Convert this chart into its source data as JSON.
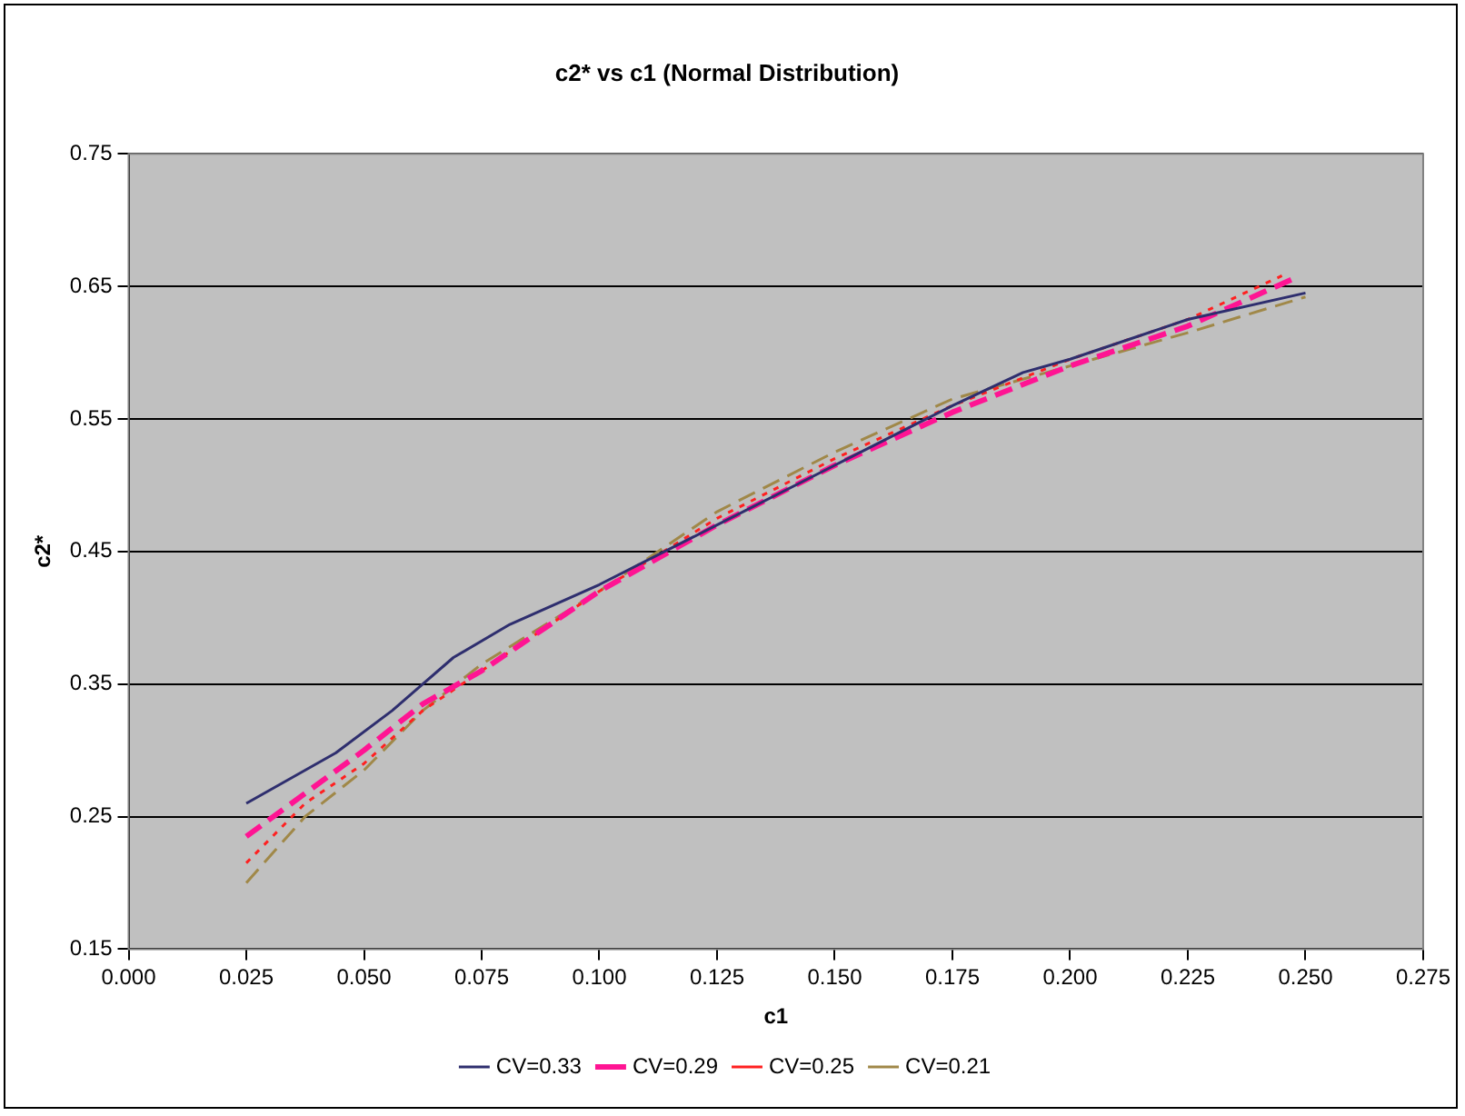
{
  "chart_data": {
    "type": "line",
    "title": "c2* vs c1 (Normal Distribution)",
    "xlabel": "c1",
    "ylabel": "c2*",
    "xlim": [
      0,
      0.275
    ],
    "xticks": [
      {
        "value": 0,
        "label": "0.000"
      },
      {
        "value": 0.025,
        "label": "0.025"
      },
      {
        "value": 0.05,
        "label": "0.050"
      },
      {
        "value": 0.075,
        "label": "0.075"
      },
      {
        "value": 0.1,
        "label": "0.100"
      },
      {
        "value": 0.125,
        "label": "0.125"
      },
      {
        "value": 0.15,
        "label": "0.150"
      },
      {
        "value": 0.175,
        "label": "0.175"
      },
      {
        "value": 0.2,
        "label": "0.200"
      },
      {
        "value": 0.225,
        "label": "0.225"
      },
      {
        "value": 0.25,
        "label": "0.250"
      },
      {
        "value": 0.275,
        "label": "0.275"
      }
    ],
    "ylim": [
      0.15,
      0.75
    ],
    "yticks": [
      0.15,
      0.25,
      0.35,
      0.45,
      0.55,
      0.65,
      0.75
    ],
    "grid": "y",
    "legend": "bottom",
    "marker": "none",
    "series": [
      {
        "name": "CV=0.33",
        "color": "#2e2e6e",
        "line_style": "solid",
        "x": [
          0.025,
          0.0375,
          0.044,
          0.056,
          0.069,
          0.081,
          0.1,
          0.125,
          0.15,
          0.175,
          0.19,
          0.2,
          0.225,
          0.25
        ],
        "values": [
          0.26,
          0.285,
          0.298,
          0.33,
          0.37,
          0.395,
          0.425,
          0.47,
          0.515,
          0.56,
          0.585,
          0.595,
          0.625,
          0.645
        ]
      },
      {
        "name": "CV=0.29",
        "color": "#ff1493",
        "line_style": "dashed",
        "x": [
          0.025,
          0.05,
          0.0625,
          0.075,
          0.1,
          0.125,
          0.15,
          0.175,
          0.2,
          0.225,
          0.247
        ],
        "values": [
          0.235,
          0.3,
          0.335,
          0.36,
          0.42,
          0.47,
          0.515,
          0.555,
          0.59,
          0.62,
          0.655
        ]
      },
      {
        "name": "CV=0.25",
        "color": "#ff2020",
        "line_style": "dotted",
        "x": [
          0.025,
          0.0375,
          0.05,
          0.0625,
          0.075,
          0.1,
          0.125,
          0.15,
          0.175,
          0.2,
          0.225,
          0.245
        ],
        "values": [
          0.215,
          0.26,
          0.29,
          0.33,
          0.36,
          0.42,
          0.475,
          0.52,
          0.56,
          0.595,
          0.625,
          0.658
        ]
      },
      {
        "name": "CV=0.21",
        "color": "#a08848",
        "line_style": "dashed",
        "x": [
          0.025,
          0.0375,
          0.05,
          0.0625,
          0.075,
          0.1,
          0.125,
          0.15,
          0.175,
          0.2,
          0.225,
          0.25
        ],
        "values": [
          0.2,
          0.25,
          0.285,
          0.33,
          0.365,
          0.42,
          0.48,
          0.525,
          0.565,
          0.59,
          0.615,
          0.642
        ]
      }
    ]
  }
}
